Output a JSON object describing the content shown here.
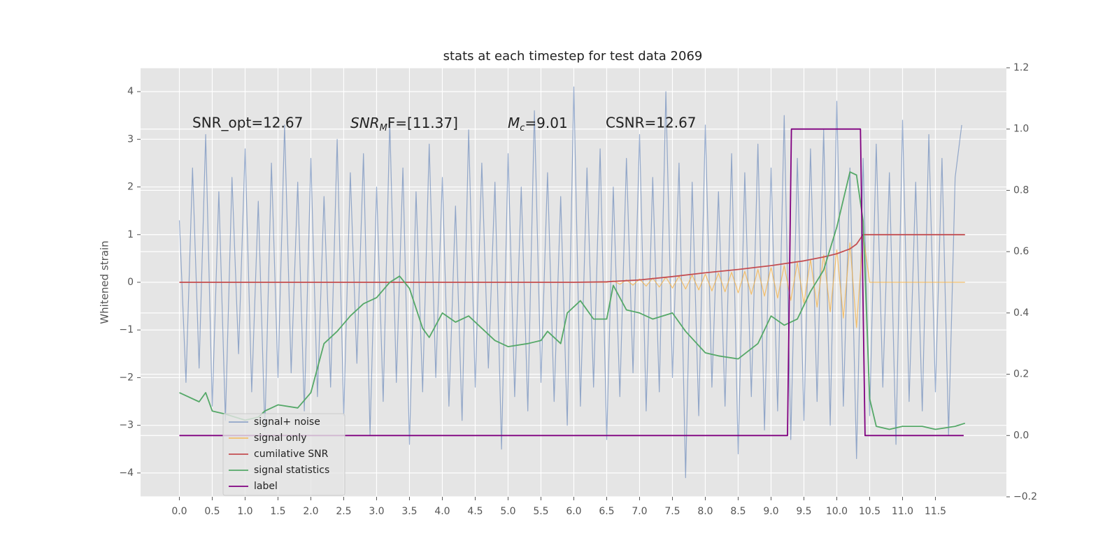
{
  "chart_data": {
    "type": "line",
    "title": "stats at each timestep for test data 2069",
    "ylabel": "Whitened strain",
    "annotations": [
      {
        "text": "SNR_opt=12.67"
      },
      {
        "main": "SNR",
        "sub": "M",
        "rest": "F=[11.37]"
      },
      {
        "main": "M",
        "sub": "c",
        "rest": "=9.01"
      },
      {
        "text": "CSNR=12.67"
      }
    ],
    "xlim": [
      -0.59,
      12.58
    ],
    "xticks": [
      {
        "value": 0,
        "label": "0.0"
      },
      0.5,
      {
        "value": 1,
        "label": "1.0"
      },
      1.5,
      {
        "value": 2,
        "label": "2.0"
      },
      2.5,
      {
        "value": 3,
        "label": "3.0"
      },
      3.5,
      {
        "value": 4,
        "label": "4.0"
      },
      4.5,
      {
        "value": 5,
        "label": "5.0"
      },
      5.5,
      {
        "value": 6,
        "label": "6.0"
      },
      6.5,
      {
        "value": 7,
        "label": "7.0"
      },
      7.5,
      {
        "value": 8,
        "label": "8.0"
      },
      8.5,
      {
        "value": 9,
        "label": "9.0"
      },
      9.5,
      {
        "value": 10,
        "label": "10.0"
      },
      10.5,
      {
        "value": 11,
        "label": "11.0"
      },
      11.5
    ],
    "ylim": [
      -4.5,
      4.5
    ],
    "yticks": [
      {
        "value": -4,
        "label": "−4"
      },
      {
        "value": -3,
        "label": "−3"
      },
      {
        "value": -2,
        "label": "−2"
      },
      {
        "value": -1,
        "label": "−1"
      },
      0,
      1,
      2,
      3,
      4
    ],
    "y2lim": [
      -0.2,
      1.2
    ],
    "y2ticks": [
      {
        "value": -0.2,
        "label": "−0.2"
      },
      {
        "value": 0,
        "label": "0.0"
      },
      0.2,
      0.4,
      0.6,
      0.8,
      {
        "value": 1,
        "label": "1.0"
      },
      1.2
    ],
    "grid": true,
    "legend": "lower left",
    "series": [
      {
        "name": "signal+ noise",
        "color": "#4c72b0",
        "x": [
          0,
          0.1,
          0.2,
          0.3,
          0.4,
          0.5,
          0.6,
          0.7,
          0.8,
          0.9,
          1,
          1.1,
          1.2,
          1.3,
          1.4,
          1.5,
          1.6,
          1.7,
          1.8,
          1.9,
          2,
          2.1,
          2.2,
          2.3,
          2.4,
          2.5,
          2.6,
          2.7,
          2.8,
          2.9,
          3,
          3.1,
          3.2,
          3.3,
          3.4,
          3.5,
          3.6,
          3.7,
          3.8,
          3.9,
          4,
          4.1,
          4.2,
          4.3,
          4.4,
          4.5,
          4.6,
          4.7,
          4.8,
          4.9,
          5,
          5.1,
          5.2,
          5.3,
          5.4,
          5.5,
          5.6,
          5.7,
          5.8,
          5.9,
          6,
          6.1,
          6.2,
          6.3,
          6.4,
          6.5,
          6.6,
          6.7,
          6.8,
          6.9,
          7,
          7.1,
          7.2,
          7.3,
          7.4,
          7.5,
          7.6,
          7.7,
          7.8,
          7.9,
          8,
          8.1,
          8.2,
          8.3,
          8.4,
          8.5,
          8.6,
          8.7,
          8.8,
          8.9,
          9,
          9.1,
          9.2,
          9.3,
          9.4,
          9.5,
          9.6,
          9.7,
          9.8,
          9.9,
          10,
          10.1,
          10.2,
          10.3,
          10.4,
          10.5,
          10.6,
          10.7,
          10.8,
          10.9,
          11,
          11.1,
          11.2,
          11.3,
          11.4,
          11.5,
          11.6,
          11.7,
          11.8,
          11.9
        ],
        "values": [
          1.3,
          -2.1,
          2.4,
          -1.8,
          3.1,
          -2.6,
          1.9,
          -2.9,
          2.2,
          -1.5,
          2.8,
          -2.3,
          1.7,
          -3.1,
          2.5,
          -2.0,
          3.3,
          -1.9,
          2.1,
          -2.7,
          2.6,
          -2.4,
          1.8,
          -2.2,
          3.0,
          -2.8,
          2.3,
          -1.7,
          2.7,
          -3.2,
          2.0,
          -2.5,
          3.4,
          -2.1,
          2.4,
          -3.4,
          1.9,
          -2.3,
          2.9,
          -2.0,
          2.2,
          -2.6,
          1.6,
          -2.9,
          3.2,
          -2.2,
          2.5,
          -1.8,
          2.1,
          -3.5,
          2.7,
          -2.4,
          2.0,
          -2.7,
          3.6,
          -2.1,
          2.3,
          -2.5,
          1.8,
          -3.0,
          4.1,
          -2.6,
          2.4,
          -2.2,
          2.8,
          -3.3,
          2.0,
          -2.4,
          2.6,
          -1.9,
          3.1,
          -2.7,
          2.2,
          -2.3,
          4.0,
          -2.0,
          2.5,
          -4.1,
          2.1,
          -2.8,
          3.3,
          -2.2,
          1.9,
          -2.6,
          2.7,
          -3.6,
          2.3,
          -2.4,
          2.9,
          -3.1,
          2.4,
          -2.7,
          3.5,
          -3.3,
          2.6,
          -2.9,
          2.8,
          -2.5,
          3.2,
          -3.0,
          3.8,
          -2.6,
          2.4,
          -3.7,
          2.6,
          -2.8,
          2.9,
          -2.2,
          2.3,
          -3.4,
          3.4,
          -2.5,
          2.1,
          -2.7,
          3.1,
          -2.3,
          2.6,
          -3.2,
          2.2,
          3.3
        ]
      },
      {
        "name": "signal only",
        "color": "#f5b041",
        "x": [
          0,
          6.5,
          6.6,
          6.7,
          6.8,
          6.9,
          7,
          7.1,
          7.2,
          7.3,
          7.4,
          7.5,
          7.6,
          7.7,
          7.8,
          7.9,
          8,
          8.1,
          8.2,
          8.3,
          8.4,
          8.5,
          8.6,
          8.7,
          8.8,
          8.9,
          9,
          9.1,
          9.2,
          9.3,
          9.4,
          9.5,
          9.6,
          9.7,
          9.8,
          9.9,
          10,
          10.1,
          10.2,
          10.3,
          10.4,
          10.5,
          11.95
        ],
        "values": [
          0,
          0,
          0.03,
          -0.04,
          0.05,
          -0.06,
          0.07,
          -0.08,
          0.09,
          -0.1,
          0.11,
          -0.12,
          0.13,
          -0.14,
          0.15,
          -0.16,
          0.17,
          -0.18,
          0.19,
          -0.2,
          0.21,
          -0.22,
          0.23,
          -0.25,
          0.27,
          -0.29,
          0.31,
          -0.33,
          0.35,
          -0.38,
          0.41,
          -0.44,
          0.48,
          -0.52,
          0.57,
          -0.62,
          0.68,
          -0.75,
          0.83,
          -0.95,
          1.0,
          0,
          0
        ]
      },
      {
        "name": "cumilative SNR",
        "color": "#c44e52",
        "x": [
          0,
          6,
          6.5,
          7,
          7.5,
          8,
          8.5,
          9,
          9.5,
          9.8,
          10,
          10.2,
          10.3,
          10.4,
          10.5,
          11.95
        ],
        "values": [
          0,
          0,
          0.01,
          0.05,
          0.12,
          0.2,
          0.27,
          0.35,
          0.45,
          0.53,
          0.6,
          0.7,
          0.8,
          1.0,
          1.0,
          1.0
        ]
      },
      {
        "name": "signal statistics",
        "color": "#55a868",
        "axis": "y2",
        "x": [
          0,
          0.3,
          0.4,
          0.5,
          0.7,
          1,
          1.2,
          1.3,
          1.5,
          1.8,
          2,
          2.2,
          2.4,
          2.6,
          2.8,
          3,
          3.2,
          3.35,
          3.5,
          3.7,
          3.8,
          4,
          4.2,
          4.4,
          4.6,
          4.8,
          5,
          5.3,
          5.5,
          5.6,
          5.8,
          5.9,
          6.1,
          6.3,
          6.5,
          6.6,
          6.8,
          7,
          7.2,
          7.5,
          7.7,
          8,
          8.2,
          8.5,
          8.8,
          9,
          9.2,
          9.4,
          9.6,
          9.8,
          10,
          10.1,
          10.2,
          10.3,
          10.4,
          10.5,
          10.6,
          10.8,
          11,
          11.3,
          11.5,
          11.8,
          11.95
        ],
        "values": [
          0.14,
          0.11,
          0.14,
          0.08,
          0.07,
          0.05,
          0.06,
          0.08,
          0.1,
          0.09,
          0.14,
          0.3,
          0.34,
          0.39,
          0.43,
          0.45,
          0.5,
          0.52,
          0.48,
          0.35,
          0.32,
          0.4,
          0.37,
          0.39,
          0.35,
          0.31,
          0.29,
          0.3,
          0.31,
          0.34,
          0.3,
          0.4,
          0.44,
          0.38,
          0.38,
          0.49,
          0.41,
          0.4,
          0.38,
          0.4,
          0.34,
          0.27,
          0.26,
          0.25,
          0.3,
          0.39,
          0.36,
          0.38,
          0.47,
          0.54,
          0.68,
          0.77,
          0.86,
          0.85,
          0.7,
          0.12,
          0.03,
          0.02,
          0.03,
          0.03,
          0.02,
          0.03,
          0.04
        ]
      },
      {
        "name": "label",
        "color": "#800080",
        "axis": "y2",
        "x": [
          0,
          9.25,
          9.31,
          10.36,
          10.43,
          11.93
        ],
        "values": [
          0,
          0,
          1,
          1,
          0,
          0
        ]
      }
    ]
  }
}
